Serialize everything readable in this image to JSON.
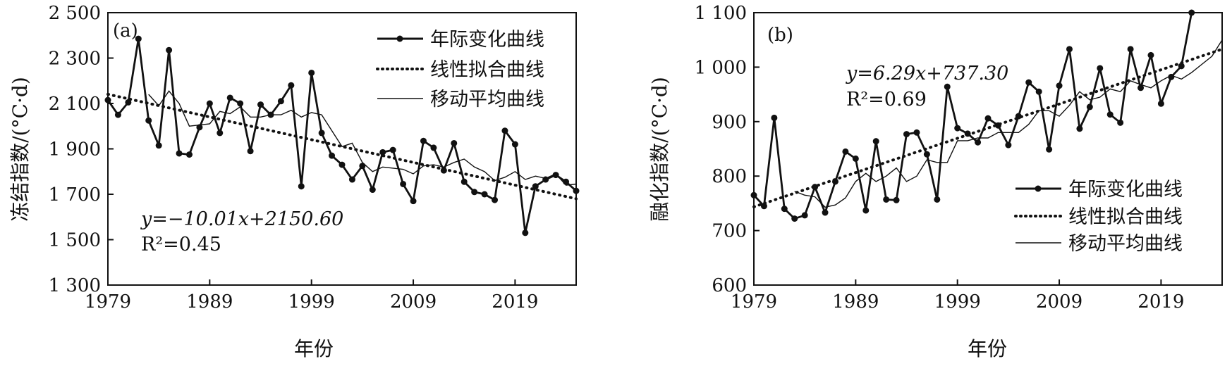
{
  "chart_data": [
    {
      "panel_label": "(a)",
      "type": "line",
      "xlabel": "年份",
      "ylabel": "冻结指数/(°C·d)",
      "xlim": [
        1979,
        2025
      ],
      "ylim": [
        1300,
        2500
      ],
      "xticks": [
        1979,
        1989,
        1999,
        2009,
        2019
      ],
      "xtick_labels": [
        "1979",
        "1989",
        "1999",
        "2009",
        "2019"
      ],
      "yticks": [
        1300,
        1500,
        1700,
        1900,
        2100,
        2300,
        2500
      ],
      "ytick_labels": [
        "1 300",
        "1 500",
        "1 700",
        "1 900",
        "2 100",
        "2 300",
        "2 500"
      ],
      "legend_position": "top-right",
      "legend": [
        "年际变化曲线",
        "线性拟合曲线",
        "移动平均曲线"
      ],
      "equation": "y=−10.01x+2150.60",
      "r2": "R²=0.45",
      "series": [
        {
          "name": "年际变化曲线",
          "style": "solid-markers",
          "x": [
            1979,
            1980,
            1981,
            1982,
            1983,
            1984,
            1985,
            1986,
            1987,
            1988,
            1989,
            1990,
            1991,
            1992,
            1993,
            1994,
            1995,
            1996,
            1997,
            1998,
            1999,
            2000,
            2001,
            2002,
            2003,
            2004,
            2005,
            2006,
            2007,
            2008,
            2009,
            2010,
            2011,
            2012,
            2013,
            2014,
            2015,
            2016,
            2017,
            2018,
            2019,
            2020,
            2021,
            2022,
            2023,
            2024,
            2025
          ],
          "y": [
            2115,
            2050,
            2105,
            2385,
            2025,
            1915,
            2335,
            1880,
            1875,
            1995,
            2100,
            1970,
            2125,
            2100,
            1890,
            2095,
            2050,
            2110,
            2180,
            1735,
            2235,
            1970,
            1870,
            1830,
            1765,
            1825,
            1720,
            1885,
            1895,
            1745,
            1670,
            1935,
            1905,
            1805,
            1925,
            1755,
            1710,
            1700,
            1675,
            1980,
            1920,
            1530,
            1735,
            1765,
            1785,
            1755,
            1715
          ]
        },
        {
          "name": "线性拟合曲线",
          "style": "dotted",
          "x": [
            1979,
            2025
          ],
          "y": [
            2140.6,
            1680.1
          ]
        },
        {
          "name": "移动平均曲线",
          "style": "thin-solid",
          "x": [
            1983,
            1984,
            1985,
            1986,
            1987,
            1988,
            1989,
            1990,
            1991,
            1992,
            1993,
            1994,
            1995,
            1996,
            1997,
            1998,
            1999,
            2000,
            2001,
            2002,
            2003,
            2004,
            2005,
            2006,
            2007,
            2008,
            2009,
            2010,
            2011,
            2012,
            2013,
            2014,
            2015,
            2016,
            2017,
            2018,
            2019,
            2020,
            2021,
            2022,
            2023,
            2024,
            2025
          ],
          "y": [
            2140,
            2090,
            2155,
            2100,
            2000,
            2005,
            2010,
            2065,
            2055,
            2085,
            2040,
            2040,
            2050,
            2050,
            2070,
            2040,
            2060,
            2050,
            1980,
            1910,
            1925,
            1840,
            1800,
            1820,
            1815,
            1810,
            1790,
            1825,
            1830,
            1820,
            1840,
            1855,
            1820,
            1800,
            1760,
            1775,
            1800,
            1765,
            1780,
            1770,
            1790,
            1740,
            1745
          ]
        }
      ]
    },
    {
      "panel_label": "(b)",
      "type": "line",
      "xlabel": "年份",
      "ylabel": "融化指数/(°C·d)",
      "xlim": [
        1979,
        2025
      ],
      "ylim": [
        600,
        1100
      ],
      "xticks": [
        1979,
        1989,
        1999,
        2009,
        2019
      ],
      "xtick_labels": [
        "1979",
        "1989",
        "1999",
        "2009",
        "2019"
      ],
      "yticks": [
        600,
        700,
        800,
        900,
        1000,
        1100
      ],
      "ytick_labels": [
        "600",
        "700",
        "800",
        "900",
        "1 000",
        "1 100"
      ],
      "legend_position": "bottom-right",
      "legend": [
        "年际变化曲线",
        "线性拟合曲线",
        "移动平均曲线"
      ],
      "equation": "y=6.29x+737.30",
      "r2": "R²=0.69",
      "series": [
        {
          "name": "年际变化曲线",
          "style": "solid-markers",
          "x": [
            1979,
            1980,
            1981,
            1982,
            1983,
            1984,
            1985,
            1986,
            1987,
            1988,
            1989,
            1990,
            1991,
            1992,
            1993,
            1994,
            1995,
            1996,
            1997,
            1998,
            1999,
            2000,
            2001,
            2002,
            2003,
            2004,
            2005,
            2006,
            2007,
            2008,
            2009,
            2010,
            2011,
            2012,
            2013,
            2014,
            2015,
            2016,
            2017,
            2018,
            2019,
            2020,
            2021,
            2022
          ],
          "y": [
            765,
            745,
            907,
            740,
            722,
            728,
            780,
            733,
            790,
            845,
            832,
            737,
            864,
            757,
            756,
            877,
            880,
            840,
            757,
            964,
            888,
            878,
            862,
            906,
            893,
            857,
            910,
            972,
            955,
            849,
            966,
            1033,
            887,
            927,
            998,
            913,
            898,
            1033,
            962,
            1022,
            933,
            982,
            1002,
            1100
          ]
        },
        {
          "name": "线性拟合曲线",
          "style": "dotted",
          "x": [
            1979,
            2025
          ],
          "y": [
            743.6,
            1033.0
          ]
        },
        {
          "name": "移动平均曲线",
          "style": "thin-solid",
          "x": [
            1983,
            1984,
            1985,
            1986,
            1987,
            1988,
            1989,
            1990,
            1991,
            1992,
            1993,
            1994,
            1995,
            1996,
            1997,
            1998,
            1999,
            2000,
            2001,
            2002,
            2003,
            2004,
            2005,
            2006,
            2007,
            2008,
            2009,
            2010,
            2011,
            2012,
            2013,
            2014,
            2015,
            2016,
            2017,
            2018,
            2019,
            2020,
            2021,
            2022,
            2023,
            2024,
            2025
          ],
          "y": [
            772,
            765,
            762,
            743,
            747,
            760,
            790,
            805,
            790,
            800,
            815,
            790,
            800,
            830,
            825,
            825,
            865,
            865,
            870,
            870,
            880,
            880,
            880,
            895,
            920,
            920,
            910,
            930,
            955,
            940,
            945,
            960,
            955,
            975,
            968,
            962,
            975,
            985,
            978,
            990,
            1005,
            1020,
            1050
          ]
        }
      ]
    }
  ]
}
